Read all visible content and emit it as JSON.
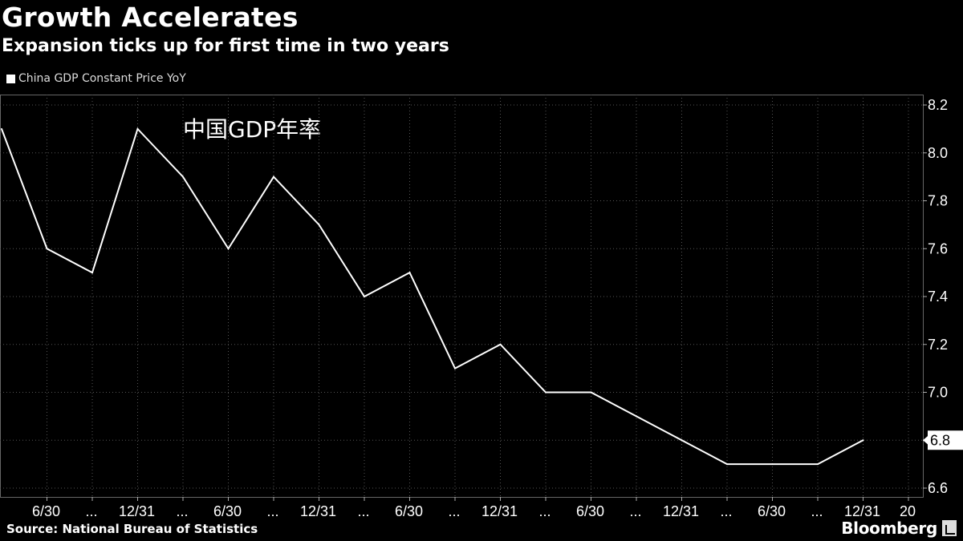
{
  "header": {
    "title": "Growth Accelerates",
    "subtitle": "Expansion ticks up for first time in two years"
  },
  "legend": {
    "label": "China GDP Constant Price YoY"
  },
  "annotation": "中国GDP年率",
  "footer": {
    "source": "Source: National Bureau of Statistics",
    "brand": "Bloomberg"
  },
  "chart_data": {
    "type": "line",
    "title": "Growth Accelerates",
    "subtitle": "Expansion ticks up for first time in two years",
    "series": [
      {
        "name": "China GDP Constant Price YoY",
        "color": "#ffffff",
        "values": [
          8.1,
          7.6,
          7.5,
          8.1,
          7.9,
          7.6,
          7.9,
          7.7,
          7.4,
          7.5,
          7.1,
          7.2,
          7.0,
          7.0,
          6.9,
          6.8,
          6.7,
          6.7,
          6.7,
          6.8
        ]
      }
    ],
    "x_tick_labels": [
      "6/30",
      "...",
      "12/31",
      "...",
      "6/30",
      "...",
      "12/31",
      "...",
      "6/30",
      "...",
      "12/31",
      "...",
      "6/30",
      "...",
      "12/31",
      "...",
      "6/30",
      "...",
      "12/31",
      "20"
    ],
    "y_ticks": [
      6.6,
      6.8,
      7.0,
      7.2,
      7.4,
      7.6,
      7.8,
      8.0,
      8.2
    ],
    "ylim": [
      6.6,
      8.2
    ],
    "last_value_label": "6.8",
    "grid": true,
    "legend_position": "top-left",
    "y_axis_side": "right"
  }
}
